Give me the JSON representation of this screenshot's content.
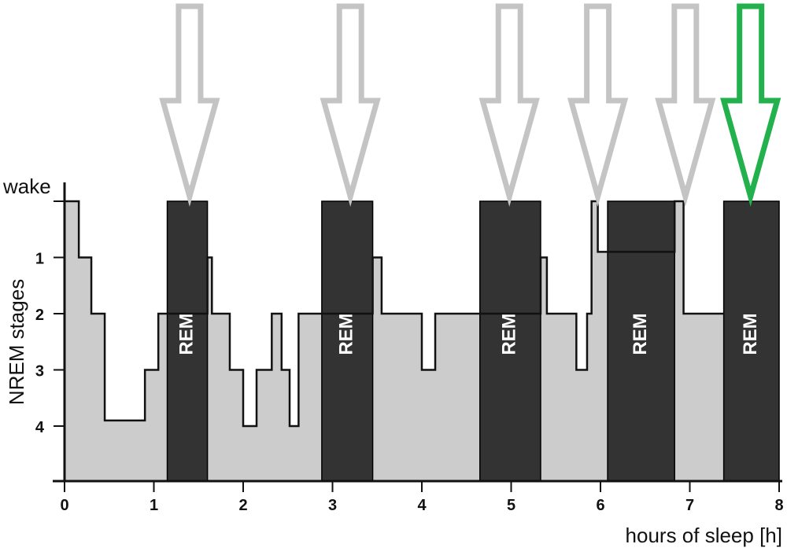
{
  "chart_data": {
    "type": "area",
    "xlabel": "hours of sleep [h]",
    "ylabel": "NREM stages",
    "xlim": [
      0,
      8
    ],
    "x_ticks": [
      "0",
      "1",
      "2",
      "3",
      "4",
      "5",
      "6",
      "7",
      "8"
    ],
    "y_ticks": [
      {
        "label": "wake",
        "value": 0
      },
      {
        "label": "1",
        "value": 1
      },
      {
        "label": "2",
        "value": 2
      },
      {
        "label": "3",
        "value": 3
      },
      {
        "label": "4",
        "value": 4
      }
    ],
    "ylim": [
      0,
      5
    ],
    "y_inverted": true,
    "hypnogram": [
      [
        0.0,
        0
      ],
      [
        0.16,
        1
      ],
      [
        0.3,
        2
      ],
      [
        0.45,
        3
      ],
      [
        0.45,
        3.9
      ],
      [
        0.9,
        3.9
      ],
      [
        0.9,
        3
      ],
      [
        1.05,
        3
      ],
      [
        1.05,
        2
      ],
      [
        1.15,
        2
      ],
      [
        1.6,
        1
      ],
      [
        1.65,
        2
      ],
      [
        1.85,
        3
      ],
      [
        2.0,
        4
      ],
      [
        2.15,
        3
      ],
      [
        2.32,
        2
      ],
      [
        2.43,
        3
      ],
      [
        2.52,
        4
      ],
      [
        2.62,
        2
      ],
      [
        2.88,
        2
      ],
      [
        3.45,
        1
      ],
      [
        3.55,
        2
      ],
      [
        4.0,
        3
      ],
      [
        4.15,
        2
      ],
      [
        4.65,
        2
      ],
      [
        5.33,
        1
      ],
      [
        5.4,
        2
      ],
      [
        5.73,
        3
      ],
      [
        5.85,
        2
      ],
      [
        5.9,
        0
      ],
      [
        5.97,
        0.9
      ],
      [
        6.08,
        0.9
      ],
      [
        6.83,
        0
      ],
      [
        6.93,
        2
      ],
      [
        7.38,
        2
      ]
    ],
    "rem_periods": [
      {
        "label": "REM",
        "start": 1.15,
        "end": 1.6
      },
      {
        "label": "REM",
        "start": 2.88,
        "end": 3.45
      },
      {
        "label": "REM",
        "start": 4.65,
        "end": 5.33
      },
      {
        "label": "REM",
        "start": 6.08,
        "end": 6.83
      },
      {
        "label": "REM",
        "start": 7.38,
        "end": 8.0
      }
    ],
    "arrows": [
      {
        "x": 1.4,
        "color": "#c4c4c4"
      },
      {
        "x": 3.2,
        "color": "#c4c4c4"
      },
      {
        "x": 4.98,
        "color": "#c4c4c4"
      },
      {
        "x": 5.97,
        "color": "#c4c4c4"
      },
      {
        "x": 6.95,
        "color": "#c4c4c4"
      },
      {
        "x": 7.68,
        "color": "#22b14c"
      }
    ],
    "colors": {
      "nrem_fill": "#cccccc",
      "rem_fill": "#333333",
      "outline": "#111111",
      "axis": "#111111"
    }
  }
}
